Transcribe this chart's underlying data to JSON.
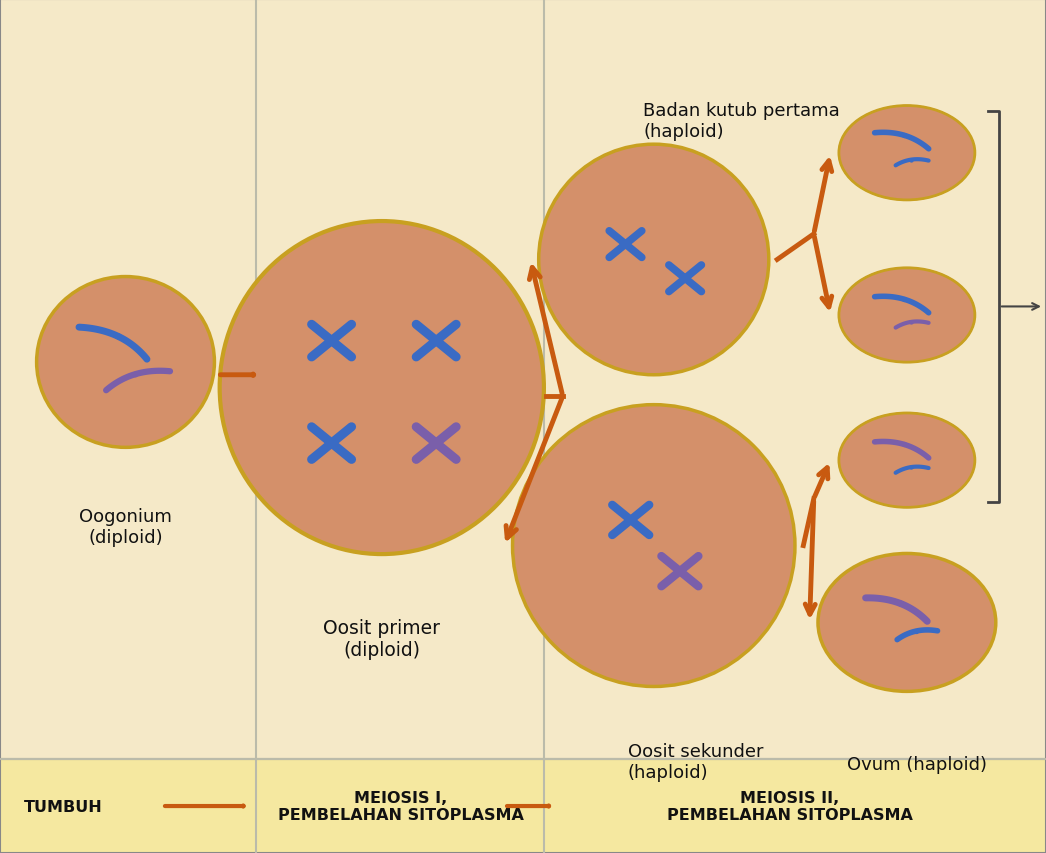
{
  "bg_color": "#f5e9c8",
  "border_color": "#888888",
  "cell_fill": "#d4906a",
  "cell_outline": "#c8a020",
  "chrom_blue": "#3a6bc4",
  "chrom_purple": "#7a5faa",
  "arrow_color": "#c85a10",
  "bracket_color": "#444444",
  "blue_arrow_color": "#2244aa",
  "label_color": "#111111",
  "texts": {
    "oogonium": "Oogonium\n(diploid)",
    "oosit_primer": "Oosit primer\n(diploid)",
    "badan_kutub": "Badan kutub pertama\n(haploid)",
    "oosit_sekunder": "Oosit sekunder\n(haploid)",
    "ovum": "Ovum (haploid)",
    "tumbuh": "TUMBUH",
    "meiosis1": "MEIOSIS I,\nPEMBELAHAN SITOPLASMA",
    "meiosis2": "MEIOSIS II,\nPEMBELAHAN SITOPLASMA"
  }
}
